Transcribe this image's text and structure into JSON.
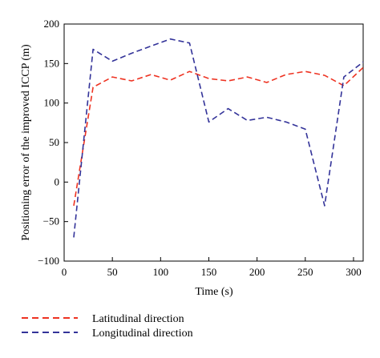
{
  "chart_data": {
    "type": "line",
    "title": "",
    "xlabel": "Time (s)",
    "ylabel": "Positioning error of the improved ICCP (m)",
    "xlim": [
      0,
      310
    ],
    "ylim": [
      -100,
      200
    ],
    "xticks": [
      0,
      50,
      100,
      150,
      200,
      250,
      300
    ],
    "yticks": [
      -100,
      -50,
      0,
      50,
      100,
      150,
      200
    ],
    "grid": false,
    "legend_position": "bottom",
    "series": [
      {
        "name": "Latitudinal direction",
        "color": "#ee3322",
        "dash": "dashed",
        "x": [
          10,
          30,
          50,
          70,
          90,
          110,
          130,
          150,
          170,
          190,
          210,
          230,
          250,
          270,
          290,
          310
        ],
        "y": [
          -30,
          120,
          133,
          128,
          136,
          129,
          140,
          131,
          128,
          133,
          126,
          136,
          140,
          135,
          122,
          145
        ]
      },
      {
        "name": "Longitudinal direction",
        "color": "#333399",
        "dash": "dashed",
        "x": [
          10,
          30,
          50,
          70,
          90,
          110,
          130,
          150,
          170,
          190,
          210,
          230,
          250,
          270,
          290,
          310
        ],
        "y": [
          -70,
          168,
          153,
          163,
          172,
          181,
          176,
          76,
          93,
          78,
          82,
          76,
          67,
          -30,
          133,
          152
        ]
      }
    ]
  }
}
